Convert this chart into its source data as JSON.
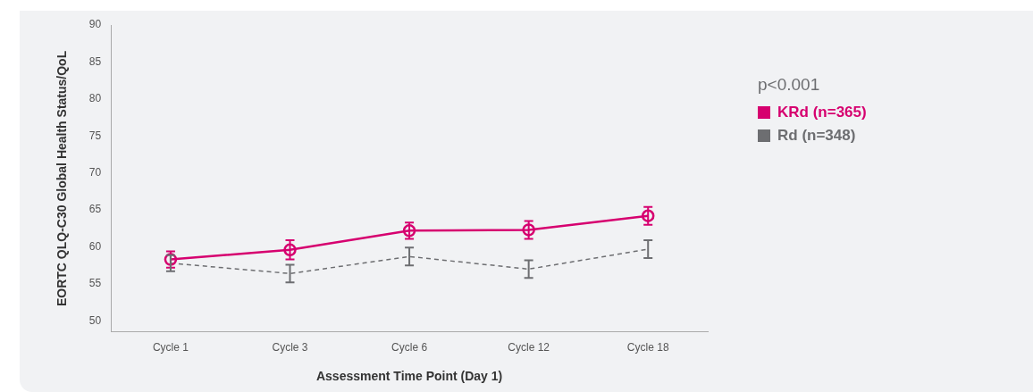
{
  "chart_data": {
    "type": "line",
    "xlabel": "Assessment Time Point (Day 1)",
    "ylabel": "EORTC QLQ-C30 Global Health Status/QoL",
    "categories": [
      "Cycle 1",
      "Cycle 3",
      "Cycle 6",
      "Cycle 12",
      "Cycle 18"
    ],
    "series": [
      {
        "name": "KRd (n=365)",
        "color": "#d6006f",
        "values": [
          58.3,
          59.6,
          62.2,
          62.3,
          64.2
        ],
        "errors": [
          1.1,
          1.3,
          1.1,
          1.2,
          1.2
        ],
        "marker": "circle",
        "line_style": "solid"
      },
      {
        "name": "Rd (n=348)",
        "color": "#6d6e71",
        "values": [
          57.8,
          56.4,
          58.7,
          57.0,
          59.7
        ],
        "errors": [
          1.1,
          1.2,
          1.2,
          1.2,
          1.2
        ],
        "marker": "none",
        "line_style": "dashed"
      }
    ],
    "ylim": [
      48.5,
      90
    ],
    "yticks": [
      50,
      55,
      60,
      65,
      70,
      75,
      80,
      85,
      90
    ],
    "grid": false,
    "legend": "right",
    "annotations": [
      "p<0.001"
    ]
  }
}
